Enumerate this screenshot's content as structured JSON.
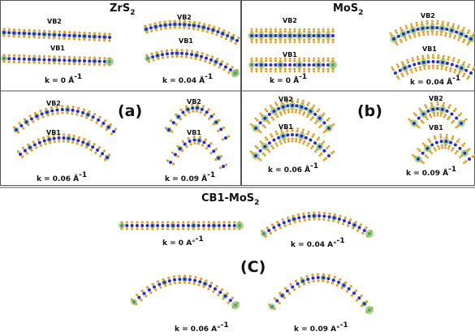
{
  "panel_a": {
    "title": {
      "text": "ZrS",
      "sub": "2"
    },
    "label": "(a)",
    "plots": [
      {
        "top": "VB2",
        "bottom": "VB1",
        "k": {
          "text": "k = 0 Å",
          "exp": "-1"
        }
      },
      {
        "top": "VB2",
        "bottom": "VB1",
        "k": {
          "text": "k = 0.04 Å",
          "exp": "-1"
        }
      },
      {
        "top": "VB2",
        "bottom": "VB1",
        "k": {
          "text": "k = 0.06 Å",
          "exp": "-1"
        }
      },
      {
        "top": "VB2",
        "bottom": "VB1",
        "k": {
          "text": "k = 0.09 Å",
          "exp": "-1"
        }
      }
    ]
  },
  "panel_b": {
    "title": {
      "text": "MoS",
      "sub": "2"
    },
    "label": "(b)",
    "plots": [
      {
        "top": "VB2",
        "bottom": "VB1",
        "k": {
          "text": "k = 0 Å",
          "exp": "-1"
        }
      },
      {
        "top": "VB2",
        "bottom": "VB1",
        "k": {
          "text": "k = 0.04 Å",
          "exp": "-1"
        }
      },
      {
        "top": "VB2",
        "bottom": "VB1",
        "k": {
          "text": "k = 0.06 Å",
          "exp": "-1"
        }
      },
      {
        "top": "VB2",
        "bottom": "VB1",
        "k": {
          "text": "k = 0.09 Å",
          "exp": "-1"
        }
      }
    ]
  },
  "panel_c": {
    "title": {
      "text": "CB1-MoS",
      "sub": "2"
    },
    "label": "(C)",
    "plots": [
      {
        "k": {
          "text": "k = 0 A°",
          "exp": "-1"
        }
      },
      {
        "k": {
          "text": "k = 0.04 A°",
          "exp": "-1"
        }
      },
      {
        "k": {
          "text": "k = 0.06 A°",
          "exp": "-1"
        }
      },
      {
        "k": {
          "text": "k = 0.09 A°",
          "exp": "-1"
        }
      }
    ]
  }
}
